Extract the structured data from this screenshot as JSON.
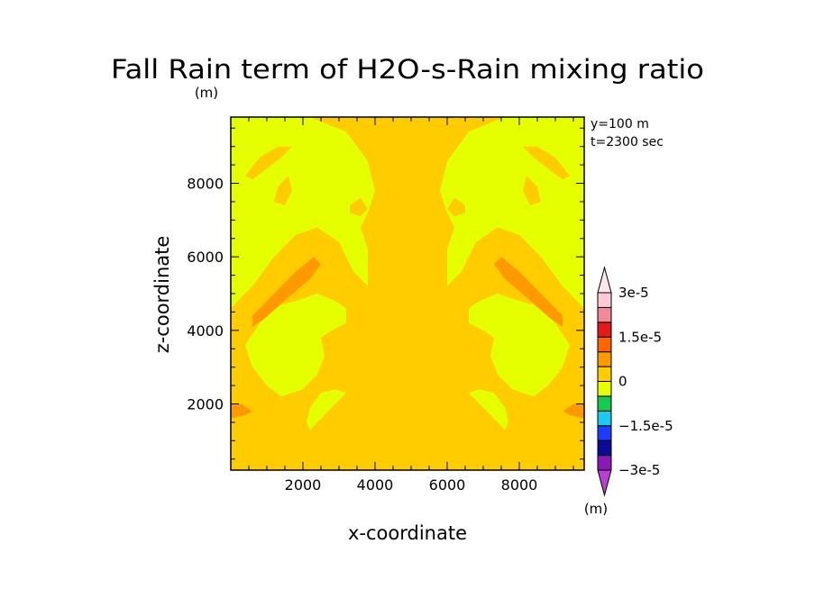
{
  "chart_data": {
    "type": "heatmap",
    "title": "Fall Rain term of H2O-s-Rain mixing ratio",
    "unit_top": "(m)",
    "xlabel": "x-coordinate",
    "ylabel": "z-coordinate",
    "annotations": [
      "y=100 m",
      "t=2300 sec"
    ],
    "xlim": [
      0,
      9800
    ],
    "ylim": [
      200,
      9800
    ],
    "xticks": [
      2000,
      4000,
      6000,
      8000
    ],
    "yticks": [
      2000,
      4000,
      6000,
      8000
    ],
    "colorbar": {
      "unit": "(m)",
      "labels": [
        {
          "text": "3e-5",
          "value": 3e-05
        },
        {
          "text": "1.5e-5",
          "value": 1.5e-05
        },
        {
          "text": "0",
          "value": 0
        },
        {
          "text": "−1.5e-5",
          "value": -1.5e-05
        },
        {
          "text": "−3e-5",
          "value": -3e-05
        }
      ],
      "bins": [
        {
          "value": -3e-05,
          "color": "#8a1ab8"
        },
        {
          "value": -2.25e-05,
          "color": "#0a0a96"
        },
        {
          "value": -1.75e-05,
          "color": "#1f3bff"
        },
        {
          "value": -1.25e-05,
          "color": "#1cc8f0"
        },
        {
          "value": -7.5e-06,
          "color": "#18c850"
        },
        {
          "value": -2.5e-06,
          "color": "#e6ff00"
        },
        {
          "value": 2.5e-06,
          "color": "#ffcc00"
        },
        {
          "value": 7.5e-06,
          "color": "#ff9900"
        },
        {
          "value": 1.25e-05,
          "color": "#ff6600"
        },
        {
          "value": 1.75e-05,
          "color": "#e31a1c"
        },
        {
          "value": 2.25e-05,
          "color": "#f08a96"
        },
        {
          "value": 2.75e-05,
          "color": "#ffcad4"
        }
      ],
      "upper_arrow_color": "#ffe6ea",
      "lower_arrow_color": "#b83fd0"
    },
    "field": {
      "background_value": 2.5e-06,
      "regions": [
        {
          "level": "low",
          "value": -2.5e-06,
          "points": [
            [
              0,
              4600
            ],
            [
              600,
              5200
            ],
            [
              1200,
              6000
            ],
            [
              1800,
              6600
            ],
            [
              2400,
              6800
            ],
            [
              3000,
              6400
            ],
            [
              3400,
              5600
            ],
            [
              3800,
              5200
            ],
            [
              3800,
              6200
            ],
            [
              3600,
              6800
            ],
            [
              3800,
              7200
            ],
            [
              4000,
              7800
            ],
            [
              3800,
              8600
            ],
            [
              3200,
              9400
            ],
            [
              2200,
              9800
            ],
            [
              0,
              9800
            ]
          ]
        },
        {
          "level": "low",
          "value": -2.5e-06,
          "points": [
            [
              9800,
              4600
            ],
            [
              9200,
              5200
            ],
            [
              8600,
              6000
            ],
            [
              8000,
              6600
            ],
            [
              7400,
              6800
            ],
            [
              6800,
              6400
            ],
            [
              6400,
              5600
            ],
            [
              6000,
              5200
            ],
            [
              6000,
              6200
            ],
            [
              6200,
              6800
            ],
            [
              6000,
              7200
            ],
            [
              5800,
              7800
            ],
            [
              6000,
              8600
            ],
            [
              6600,
              9400
            ],
            [
              7600,
              9800
            ],
            [
              9800,
              9800
            ]
          ]
        },
        {
          "level": "low",
          "value": -2.5e-06,
          "points": [
            [
              1800,
              4800
            ],
            [
              2400,
              5000
            ],
            [
              2900,
              4800
            ],
            [
              3200,
              4600
            ],
            [
              3200,
              4200
            ],
            [
              2800,
              4000
            ],
            [
              2500,
              3800
            ],
            [
              2600,
              3300
            ],
            [
              2400,
              2800
            ],
            [
              2000,
              2400
            ],
            [
              1400,
              2200
            ],
            [
              1000,
              2500
            ],
            [
              600,
              3000
            ],
            [
              400,
              3600
            ],
            [
              800,
              4200
            ],
            [
              1400,
              4700
            ]
          ]
        },
        {
          "level": "low",
          "value": -2.5e-06,
          "points": [
            [
              8000,
              4800
            ],
            [
              7400,
              5000
            ],
            [
              6900,
              4800
            ],
            [
              6600,
              4600
            ],
            [
              6600,
              4200
            ],
            [
              7000,
              4000
            ],
            [
              7300,
              3800
            ],
            [
              7200,
              3300
            ],
            [
              7400,
              2800
            ],
            [
              7800,
              2400
            ],
            [
              8400,
              2200
            ],
            [
              8800,
              2500
            ],
            [
              9200,
              3000
            ],
            [
              9400,
              3600
            ],
            [
              9000,
              4200
            ],
            [
              8400,
              4700
            ]
          ]
        },
        {
          "level": "low",
          "value": -2.5e-06,
          "points": [
            [
              2200,
              1300
            ],
            [
              2600,
              1700
            ],
            [
              3000,
              2100
            ],
            [
              3200,
              2300
            ],
            [
              2900,
              2400
            ],
            [
              2500,
              2300
            ],
            [
              2200,
              1900
            ],
            [
              2100,
              1500
            ]
          ]
        },
        {
          "level": "low",
          "value": -2.5e-06,
          "points": [
            [
              7600,
              1300
            ],
            [
              7200,
              1700
            ],
            [
              6800,
              2100
            ],
            [
              6600,
              2300
            ],
            [
              6900,
              2400
            ],
            [
              7300,
              2300
            ],
            [
              7600,
              1900
            ],
            [
              7700,
              1500
            ]
          ]
        },
        {
          "level": "base",
          "value": 2.5e-06,
          "points": [
            [
              400,
              8200
            ],
            [
              800,
              8700
            ],
            [
              1300,
              9000
            ],
            [
              1700,
              9000
            ],
            [
              1400,
              8700
            ],
            [
              1000,
              8400
            ],
            [
              600,
              8100
            ]
          ]
        },
        {
          "level": "base",
          "value": 2.5e-06,
          "points": [
            [
              9400,
              8200
            ],
            [
              9000,
              8700
            ],
            [
              8500,
              9000
            ],
            [
              8100,
              9000
            ],
            [
              8400,
              8700
            ],
            [
              8800,
              8400
            ],
            [
              9200,
              8100
            ]
          ]
        },
        {
          "level": "base",
          "value": 2.5e-06,
          "points": [
            [
              1300,
              7900
            ],
            [
              1600,
              8200
            ],
            [
              1700,
              7800
            ],
            [
              1500,
              7400
            ],
            [
              1200,
              7500
            ]
          ]
        },
        {
          "level": "base",
          "value": 2.5e-06,
          "points": [
            [
              8500,
              7900
            ],
            [
              8200,
              8200
            ],
            [
              8100,
              7800
            ],
            [
              8300,
              7400
            ],
            [
              8600,
              7500
            ]
          ]
        },
        {
          "level": "base",
          "value": 2.5e-06,
          "points": [
            [
              3300,
              7400
            ],
            [
              3600,
              7600
            ],
            [
              3800,
              7300
            ],
            [
              3600,
              7100
            ],
            [
              3300,
              7200
            ]
          ]
        },
        {
          "level": "base",
          "value": 2.5e-06,
          "points": [
            [
              6500,
              7400
            ],
            [
              6200,
              7600
            ],
            [
              6000,
              7300
            ],
            [
              6200,
              7100
            ],
            [
              6500,
              7200
            ]
          ]
        },
        {
          "level": "base",
          "value": 2.5e-06,
          "points": [
            [
              0,
              1900
            ],
            [
              400,
              1800
            ],
            [
              600,
              1700
            ],
            [
              300,
              1600
            ],
            [
              0,
              1600
            ]
          ]
        },
        {
          "level": "base",
          "value": 2.5e-06,
          "points": [
            [
              9800,
              1900
            ],
            [
              9400,
              1800
            ],
            [
              9200,
              1700
            ],
            [
              9500,
              1600
            ],
            [
              9800,
              1600
            ]
          ]
        },
        {
          "level": "mid",
          "value": 7.5e-06,
          "points": [
            [
              600,
              4400
            ],
            [
              1200,
              5000
            ],
            [
              1800,
              5600
            ],
            [
              2300,
              6000
            ],
            [
              2500,
              5800
            ],
            [
              2200,
              5400
            ],
            [
              1600,
              4900
            ],
            [
              900,
              4300
            ],
            [
              600,
              4100
            ]
          ]
        },
        {
          "level": "mid",
          "value": 7.5e-06,
          "points": [
            [
              9200,
              4400
            ],
            [
              8600,
              5000
            ],
            [
              8000,
              5600
            ],
            [
              7500,
              6000
            ],
            [
              7300,
              5800
            ],
            [
              7600,
              5400
            ],
            [
              8200,
              4900
            ],
            [
              8900,
              4300
            ],
            [
              9200,
              4100
            ]
          ]
        },
        {
          "level": "mid",
          "value": 7.5e-06,
          "points": [
            [
              0,
              1600
            ],
            [
              400,
              1700
            ],
            [
              600,
              1800
            ],
            [
              300,
              2000
            ],
            [
              0,
              2000
            ]
          ]
        },
        {
          "level": "mid",
          "value": 7.5e-06,
          "points": [
            [
              9800,
              1600
            ],
            [
              9400,
              1700
            ],
            [
              9200,
              1800
            ],
            [
              9500,
              2000
            ],
            [
              9800,
              2000
            ]
          ]
        }
      ]
    }
  }
}
